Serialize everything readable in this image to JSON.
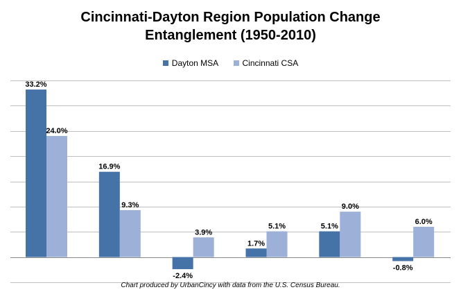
{
  "title_line1": "Cincinnati-Dayton Region Population Change",
  "title_line2": "Entanglement (1950-2010)",
  "caption": "Chart produced by UrbanCincy with data from the U.S. Census Bureau.",
  "chart_data": {
    "type": "bar",
    "categories": [
      "",
      "",
      "",
      "",
      "",
      ""
    ],
    "series": [
      {
        "name": "Dayton MSA",
        "color": "#4572A7",
        "values": [
          33.2,
          16.9,
          -2.4,
          1.7,
          5.1,
          -0.8
        ],
        "labels": [
          "33.2%",
          "16.9%",
          "-2.4%",
          "1.7%",
          "5.1%",
          "-0.8%"
        ]
      },
      {
        "name": "Cincinnati CSA",
        "color": "#9DB0D8",
        "values": [
          24.0,
          9.3,
          3.9,
          5.1,
          9.0,
          6.0
        ],
        "labels": [
          "24.0%",
          "9.3%",
          "3.9%",
          "5.1%",
          "9.0%",
          "6.0%"
        ]
      }
    ],
    "ylim": [
      -5,
      35
    ],
    "ytick_step": 5,
    "grid": true,
    "legend": "top-center",
    "xlabel": "",
    "ylabel": ""
  }
}
